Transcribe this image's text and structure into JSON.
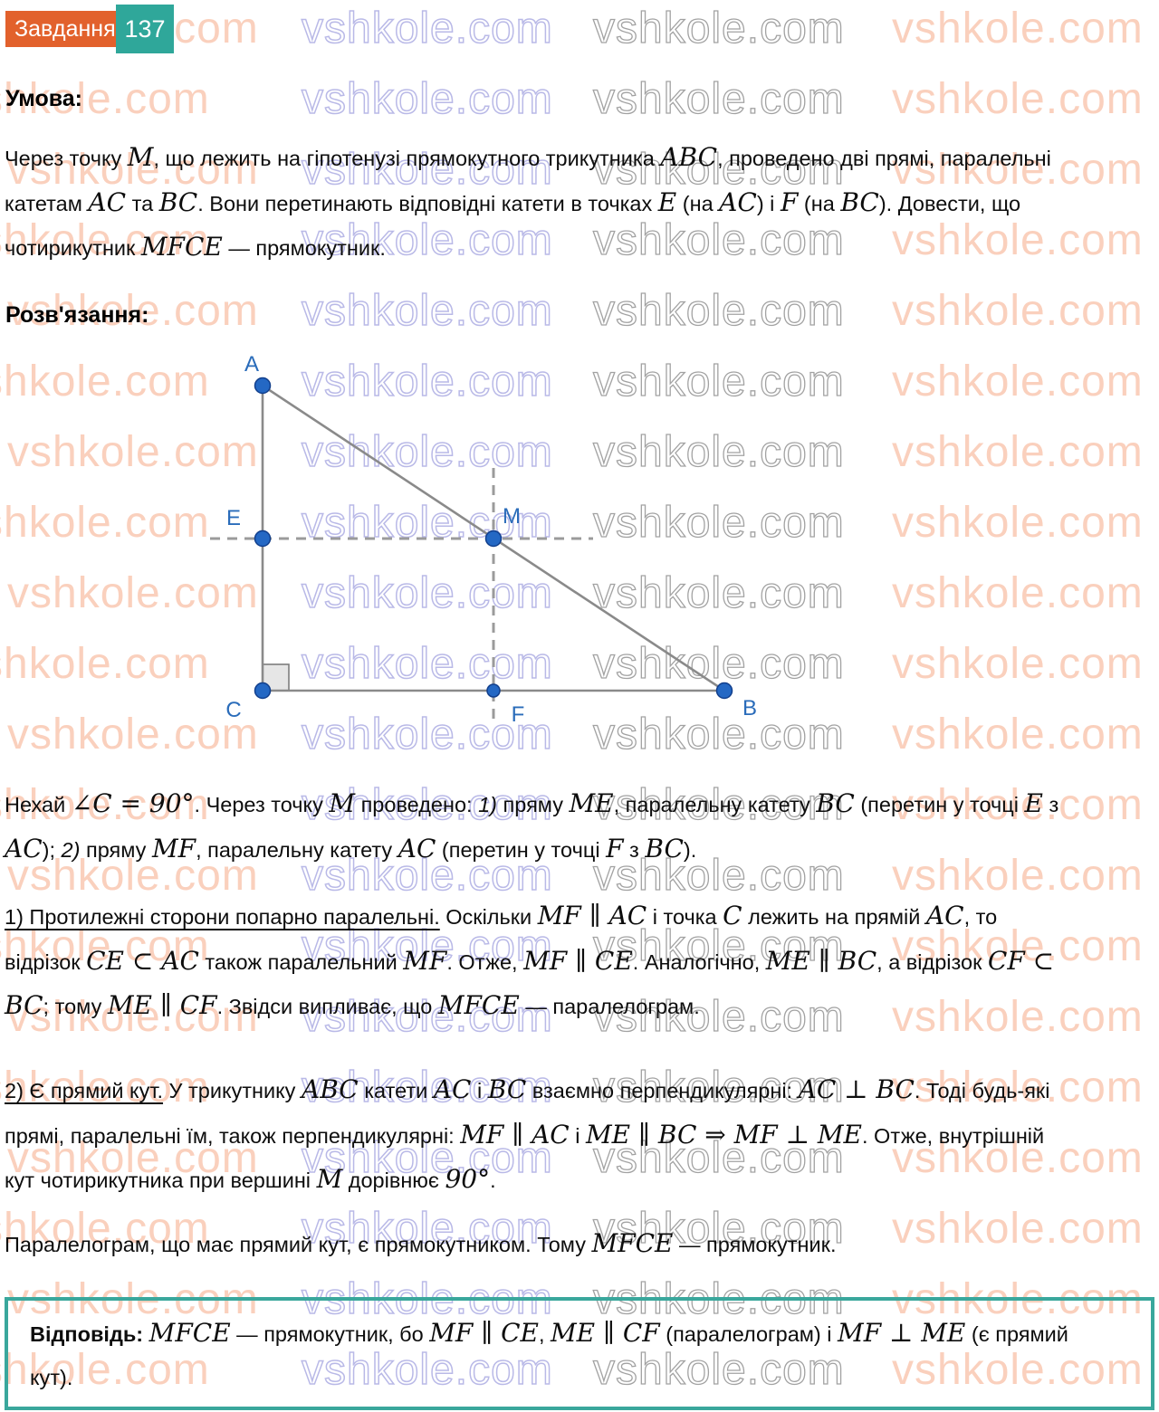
{
  "header": {
    "task_label": "Завдання:",
    "task_number": "137"
  },
  "watermark": {
    "text": "vshkole.com"
  },
  "sections": {
    "condition_heading": "Умова:",
    "solution_heading": "Розв'язання:"
  },
  "condition": {
    "runs": [
      [
        "n",
        "Через точку "
      ],
      [
        "m",
        "M"
      ],
      [
        "n",
        ", що лежить на гіпотенузі прямокутного трикутника "
      ],
      [
        "m",
        "ABC"
      ],
      [
        "n",
        ", проведено дві прямі, паралельні катетам "
      ],
      [
        "m",
        "AC"
      ],
      [
        "n",
        " та "
      ],
      [
        "m",
        "BC"
      ],
      [
        "n",
        ". Вони перетинають відповідні катети в точках "
      ],
      [
        "m",
        "E"
      ],
      [
        "n",
        " (на "
      ],
      [
        "m",
        "AC"
      ],
      [
        "n",
        ") і "
      ],
      [
        "m",
        "F"
      ],
      [
        "n",
        " (на "
      ],
      [
        "m",
        "BC"
      ],
      [
        "n",
        "). Довести, що чотирикутник "
      ],
      [
        "m",
        "MFCE"
      ],
      [
        "n",
        " — прямокутник."
      ]
    ]
  },
  "solution": {
    "intro": {
      "runs": [
        [
          "n",
          "Нехай "
        ],
        [
          "m",
          "∠C = 90°"
        ],
        [
          "n",
          ". Через точку "
        ],
        [
          "m",
          "M"
        ],
        [
          "n",
          " проведено: "
        ],
        [
          "i",
          "1)"
        ],
        [
          "n",
          " пряму "
        ],
        [
          "m",
          "ME"
        ],
        [
          "n",
          ", паралельну катету "
        ],
        [
          "m",
          "BC"
        ],
        [
          "n",
          " (перетин у точці "
        ],
        [
          "m",
          "E"
        ],
        [
          "n",
          " з "
        ],
        [
          "m",
          "AC"
        ],
        [
          "n",
          "); "
        ],
        [
          "i",
          "2)"
        ],
        [
          "n",
          " пряму "
        ],
        [
          "m",
          "MF"
        ],
        [
          "n",
          ", паралельну катету "
        ],
        [
          "m",
          "AC"
        ],
        [
          "n",
          " (перетин у точці "
        ],
        [
          "m",
          "F"
        ],
        [
          "n",
          " з "
        ],
        [
          "m",
          "BC"
        ],
        [
          "n",
          ")."
        ]
      ]
    },
    "step1": {
      "runs": [
        [
          "u",
          "1) Протилежні сторони попарно паралельні."
        ],
        [
          "n",
          " Оскільки "
        ],
        [
          "m",
          "MF ∥ AC"
        ],
        [
          "n",
          " і точка "
        ],
        [
          "m",
          "C"
        ],
        [
          "n",
          " лежить на прямій "
        ],
        [
          "m",
          "AC"
        ],
        [
          "n",
          ", то відрізок "
        ],
        [
          "m",
          "CE ⊂ AC"
        ],
        [
          "n",
          " також паралельний "
        ],
        [
          "m",
          "MF"
        ],
        [
          "n",
          ". Отже, "
        ],
        [
          "m",
          "MF ∥ CE"
        ],
        [
          "n",
          ". Аналогічно, "
        ],
        [
          "m",
          "ME ∥ BC"
        ],
        [
          "n",
          ", а відрізок "
        ],
        [
          "m",
          "CF ⊂ BC"
        ],
        [
          "n",
          "; тому "
        ],
        [
          "m",
          "ME ∥ CF"
        ],
        [
          "n",
          ". Звідси випливає, що "
        ],
        [
          "m",
          "MFCE"
        ],
        [
          "n",
          " — паралелограм."
        ]
      ]
    },
    "step2": {
      "runs": [
        [
          "u",
          "2) Є прямий кут."
        ],
        [
          "n",
          " У трикутнику "
        ],
        [
          "m",
          "ABC"
        ],
        [
          "n",
          " катети "
        ],
        [
          "m",
          "AC"
        ],
        [
          "n",
          " і "
        ],
        [
          "m",
          "BC"
        ],
        [
          "n",
          " взаємно перпендикулярні: "
        ],
        [
          "m",
          "AC ⊥ BC"
        ],
        [
          "n",
          ". Тоді будь-які прямі, паралельні їм, також перпендикулярні: "
        ],
        [
          "m",
          "MF ∥ AC"
        ],
        [
          "n",
          " і "
        ],
        [
          "m",
          "ME ∥ BC ⇒ MF ⊥ ME"
        ],
        [
          "n",
          ". Отже, внутрішній кут чотирикутника при вершині "
        ],
        [
          "m",
          "M"
        ],
        [
          "n",
          " дорівнює "
        ],
        [
          "m",
          "90°"
        ],
        [
          "n",
          "."
        ]
      ]
    },
    "step3": {
      "runs": [
        [
          "n",
          "Паралелограм, що має прямий кут, є прямокутником. Тому "
        ],
        [
          "m",
          "MFCE"
        ],
        [
          "n",
          " — прямокутник."
        ]
      ]
    }
  },
  "answer": {
    "runs": [
      [
        "b",
        "Відповідь: "
      ],
      [
        "m",
        "MFCE"
      ],
      [
        "n",
        " — прямокутник, бо "
      ],
      [
        "m",
        "MF ∥ CE"
      ],
      [
        "n",
        ", "
      ],
      [
        "m",
        "ME ∥ CF"
      ],
      [
        "n",
        " (паралелограм) і "
      ],
      [
        "m",
        "MF ⊥ ME"
      ],
      [
        "n",
        " (є прямий кут)."
      ]
    ]
  },
  "diagram": {
    "labels": {
      "A": "A",
      "B": "B",
      "C": "C",
      "E": "E",
      "F": "F",
      "M": "M"
    }
  },
  "colors": {
    "badge_orange": "#e2612c",
    "badge_teal": "#2fa79a",
    "accent_blue": "#2a6cba",
    "point_blue": "#2468c4",
    "line_gray": "#8a8a8a",
    "answer_border": "#3aa79c",
    "watermark_salmon": "#f5aa86",
    "watermark_purple": "#8080d4"
  }
}
